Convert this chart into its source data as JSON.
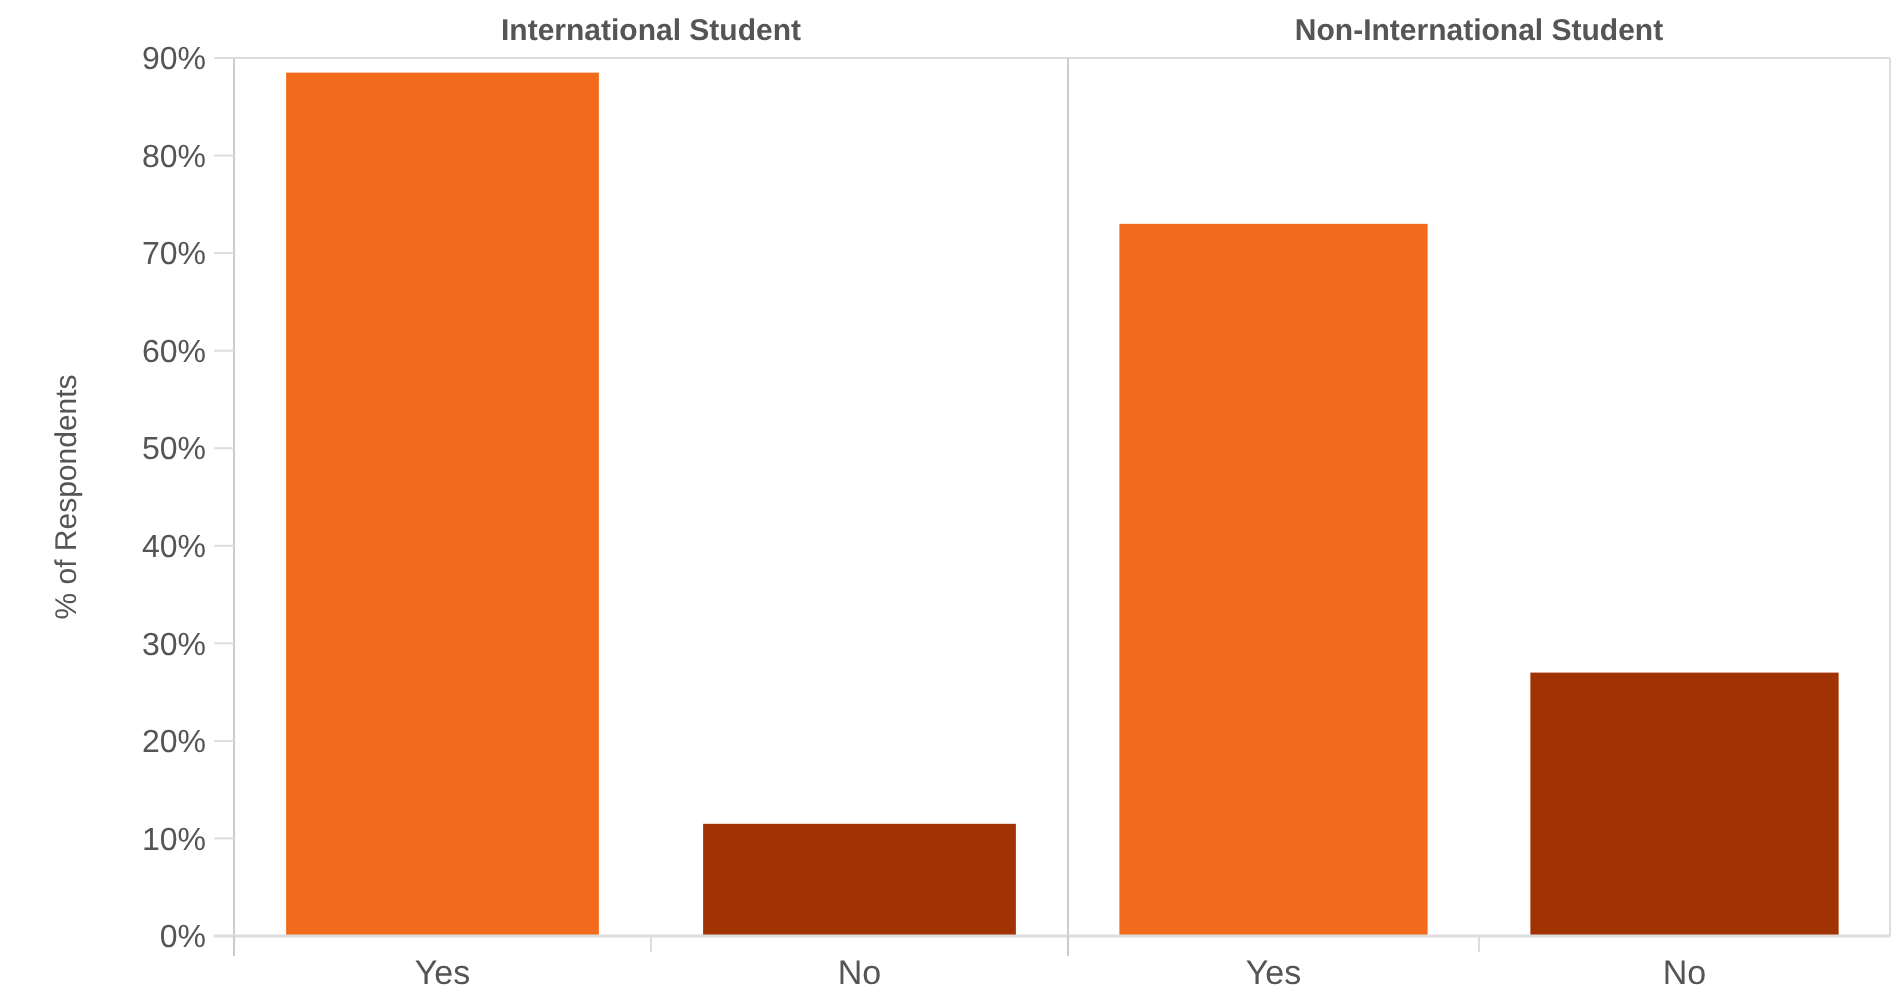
{
  "chart_data": [
    {
      "type": "bar",
      "title": "International Student",
      "ylabel": "% of Respondents",
      "categories": [
        "Yes",
        "No"
      ],
      "values": [
        88.5,
        11.5
      ],
      "colors": [
        "#f26b1d",
        "#a03203"
      ],
      "ylim": [
        0,
        90
      ],
      "yticks": [
        {
          "value": 0,
          "label": "0%"
        },
        {
          "value": 10,
          "label": "10%"
        },
        {
          "value": 20,
          "label": "20%"
        },
        {
          "value": 30,
          "label": "30%"
        },
        {
          "value": 40,
          "label": "40%"
        },
        {
          "value": 50,
          "label": "50%"
        },
        {
          "value": 60,
          "label": "60%"
        },
        {
          "value": 70,
          "label": "70%"
        },
        {
          "value": 80,
          "label": "80%"
        },
        {
          "value": 90,
          "label": "90%"
        }
      ],
      "grid": false
    },
    {
      "type": "bar",
      "title": "Non-International Student",
      "categories": [
        "Yes",
        "No"
      ],
      "values": [
        73,
        27
      ],
      "colors": [
        "#f26b1d",
        "#a03203"
      ],
      "ylim": [
        0,
        90
      ],
      "grid": false,
      "tick_labels": "x"
    }
  ]
}
